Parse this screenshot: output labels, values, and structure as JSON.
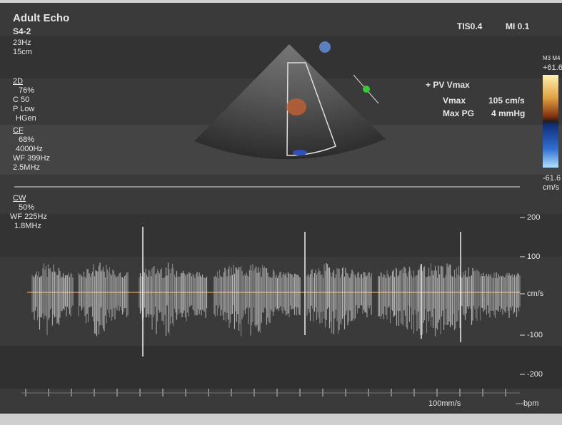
{
  "header": {
    "mode": "Adult Echo",
    "probe": "S4-2",
    "frame_rate": "23Hz",
    "depth": "15cm",
    "tis": "TIS0.4",
    "mi": "MI 0.1"
  },
  "settings_2d": {
    "label": "2D",
    "gain": "76%",
    "compression": "C 50",
    "power": "P Low",
    "frequency": "HGen"
  },
  "settings_cf": {
    "label": "CF",
    "gain": "68%",
    "prf": "4000Hz",
    "wall_filter": "WF 399Hz",
    "frequency": "2.5MHz"
  },
  "settings_cw": {
    "label": "CW",
    "gain": "50%",
    "wall_filter": "WF 225Hz",
    "frequency": "1.8MHz"
  },
  "measurement": {
    "title": "+ PV Vmax",
    "vmax_label": "Vmax",
    "vmax_value": "105 cm/s",
    "pg_label": "Max PG",
    "pg_value": "4 mmHg"
  },
  "color_bar": {
    "maps": "M3 M4",
    "top": "+61.6",
    "bottom": "-61.6",
    "unit": "cm/s"
  },
  "doppler_scale": {
    "ticks": [
      "200",
      "100",
      "cm/s",
      "-100",
      "-200"
    ]
  },
  "footer": {
    "sweep": "100mm/s",
    "heart_rate": "---bpm"
  }
}
